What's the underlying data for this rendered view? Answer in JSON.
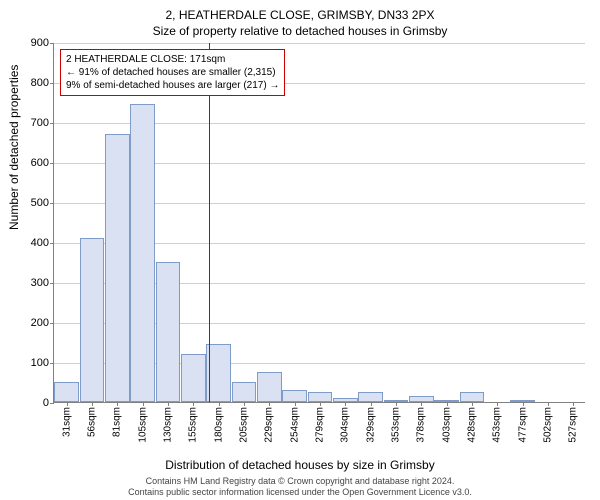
{
  "title": "2, HEATHERDALE CLOSE, GRIMSBY, DN33 2PX",
  "subtitle": "Size of property relative to detached houses in Grimsby",
  "y_axis_label": "Number of detached properties",
  "x_axis_label": "Distribution of detached houses by size in Grimsby",
  "footer_line1": "Contains HM Land Registry data © Crown copyright and database right 2024.",
  "footer_line2": "Contains public sector information licensed under the Open Government Licence v3.0.",
  "chart": {
    "type": "bar",
    "ylim": [
      0,
      900
    ],
    "ytick_step": 100,
    "bar_fill": "#d9e1f2",
    "bar_stroke": "#7f9cc9",
    "grid_color": "#d0d0d0",
    "ref_line_color": "#cc0000",
    "ref_line_value": 171,
    "categories": [
      "31sqm",
      "56sqm",
      "81sqm",
      "105sqm",
      "130sqm",
      "155sqm",
      "180sqm",
      "205sqm",
      "229sqm",
      "254sqm",
      "279sqm",
      "304sqm",
      "329sqm",
      "353sqm",
      "378sqm",
      "403sqm",
      "428sqm",
      "453sqm",
      "477sqm",
      "502sqm",
      "527sqm"
    ],
    "values": [
      50,
      410,
      670,
      745,
      350,
      120,
      145,
      50,
      75,
      30,
      25,
      10,
      25,
      5,
      15,
      5,
      25,
      0,
      5,
      0,
      0
    ]
  },
  "annotation": {
    "line1": "2 HEATHERDALE CLOSE: 171sqm",
    "line2": "← 91% of detached houses are smaller (2,315)",
    "line3": "9% of semi-detached houses are larger (217) →"
  }
}
